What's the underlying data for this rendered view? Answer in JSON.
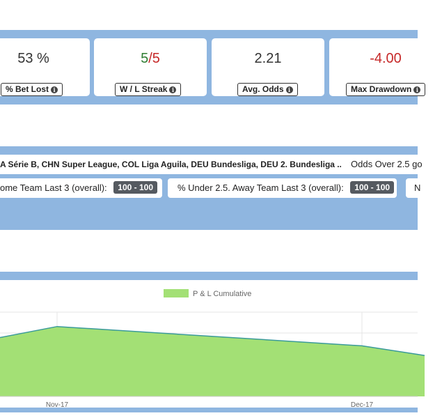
{
  "stats": [
    {
      "value": "53 %",
      "label": "% Bet Lost",
      "color": "#333333"
    },
    {
      "value_win": "5",
      "value_sep": "/",
      "value_loss": "5",
      "label": "W / L Streak",
      "win_color": "#2e7d32",
      "loss_color": "#c62828"
    },
    {
      "value": "2.21",
      "label": "Avg. Odds",
      "color": "#333333"
    },
    {
      "value": "-4.00",
      "label": "Max Drawdown",
      "color": "#c62828"
    }
  ],
  "info_glyph": "i",
  "filters": {
    "leagues": "A Série B, CHN Super League, COL Liga Aguila, DEU Bundesliga, DEU 2. Bundesliga ...",
    "odds_over": "Odds Over 2.5 go",
    "home_team_label": "ome Team Last 3 (overall):",
    "home_team_range": "100 - 100",
    "away_team_label": "% Under 2.5. Away Team Last 3 (overall):",
    "away_team_range": "100 - 100",
    "next_partial": "N"
  },
  "chart_data": {
    "type": "area",
    "legend": [
      "P & L Cumulative"
    ],
    "legend_color": "#a3e075",
    "x_tick_labels": [
      "Nov-17",
      "Dec-17"
    ],
    "series": [
      {
        "name": "P & L Cumulative",
        "color": "#a3e075",
        "line_color": "#3a9a9a",
        "points": [
          {
            "x": "Oct-17",
            "y": 4.8
          },
          {
            "x": "Nov-17",
            "y": 5.8
          },
          {
            "x": "Dec-17",
            "y": 4.2
          },
          {
            "x": "Dec-17+",
            "y": 3.4
          }
        ]
      }
    ],
    "ylim": [
      0,
      7
    ]
  }
}
